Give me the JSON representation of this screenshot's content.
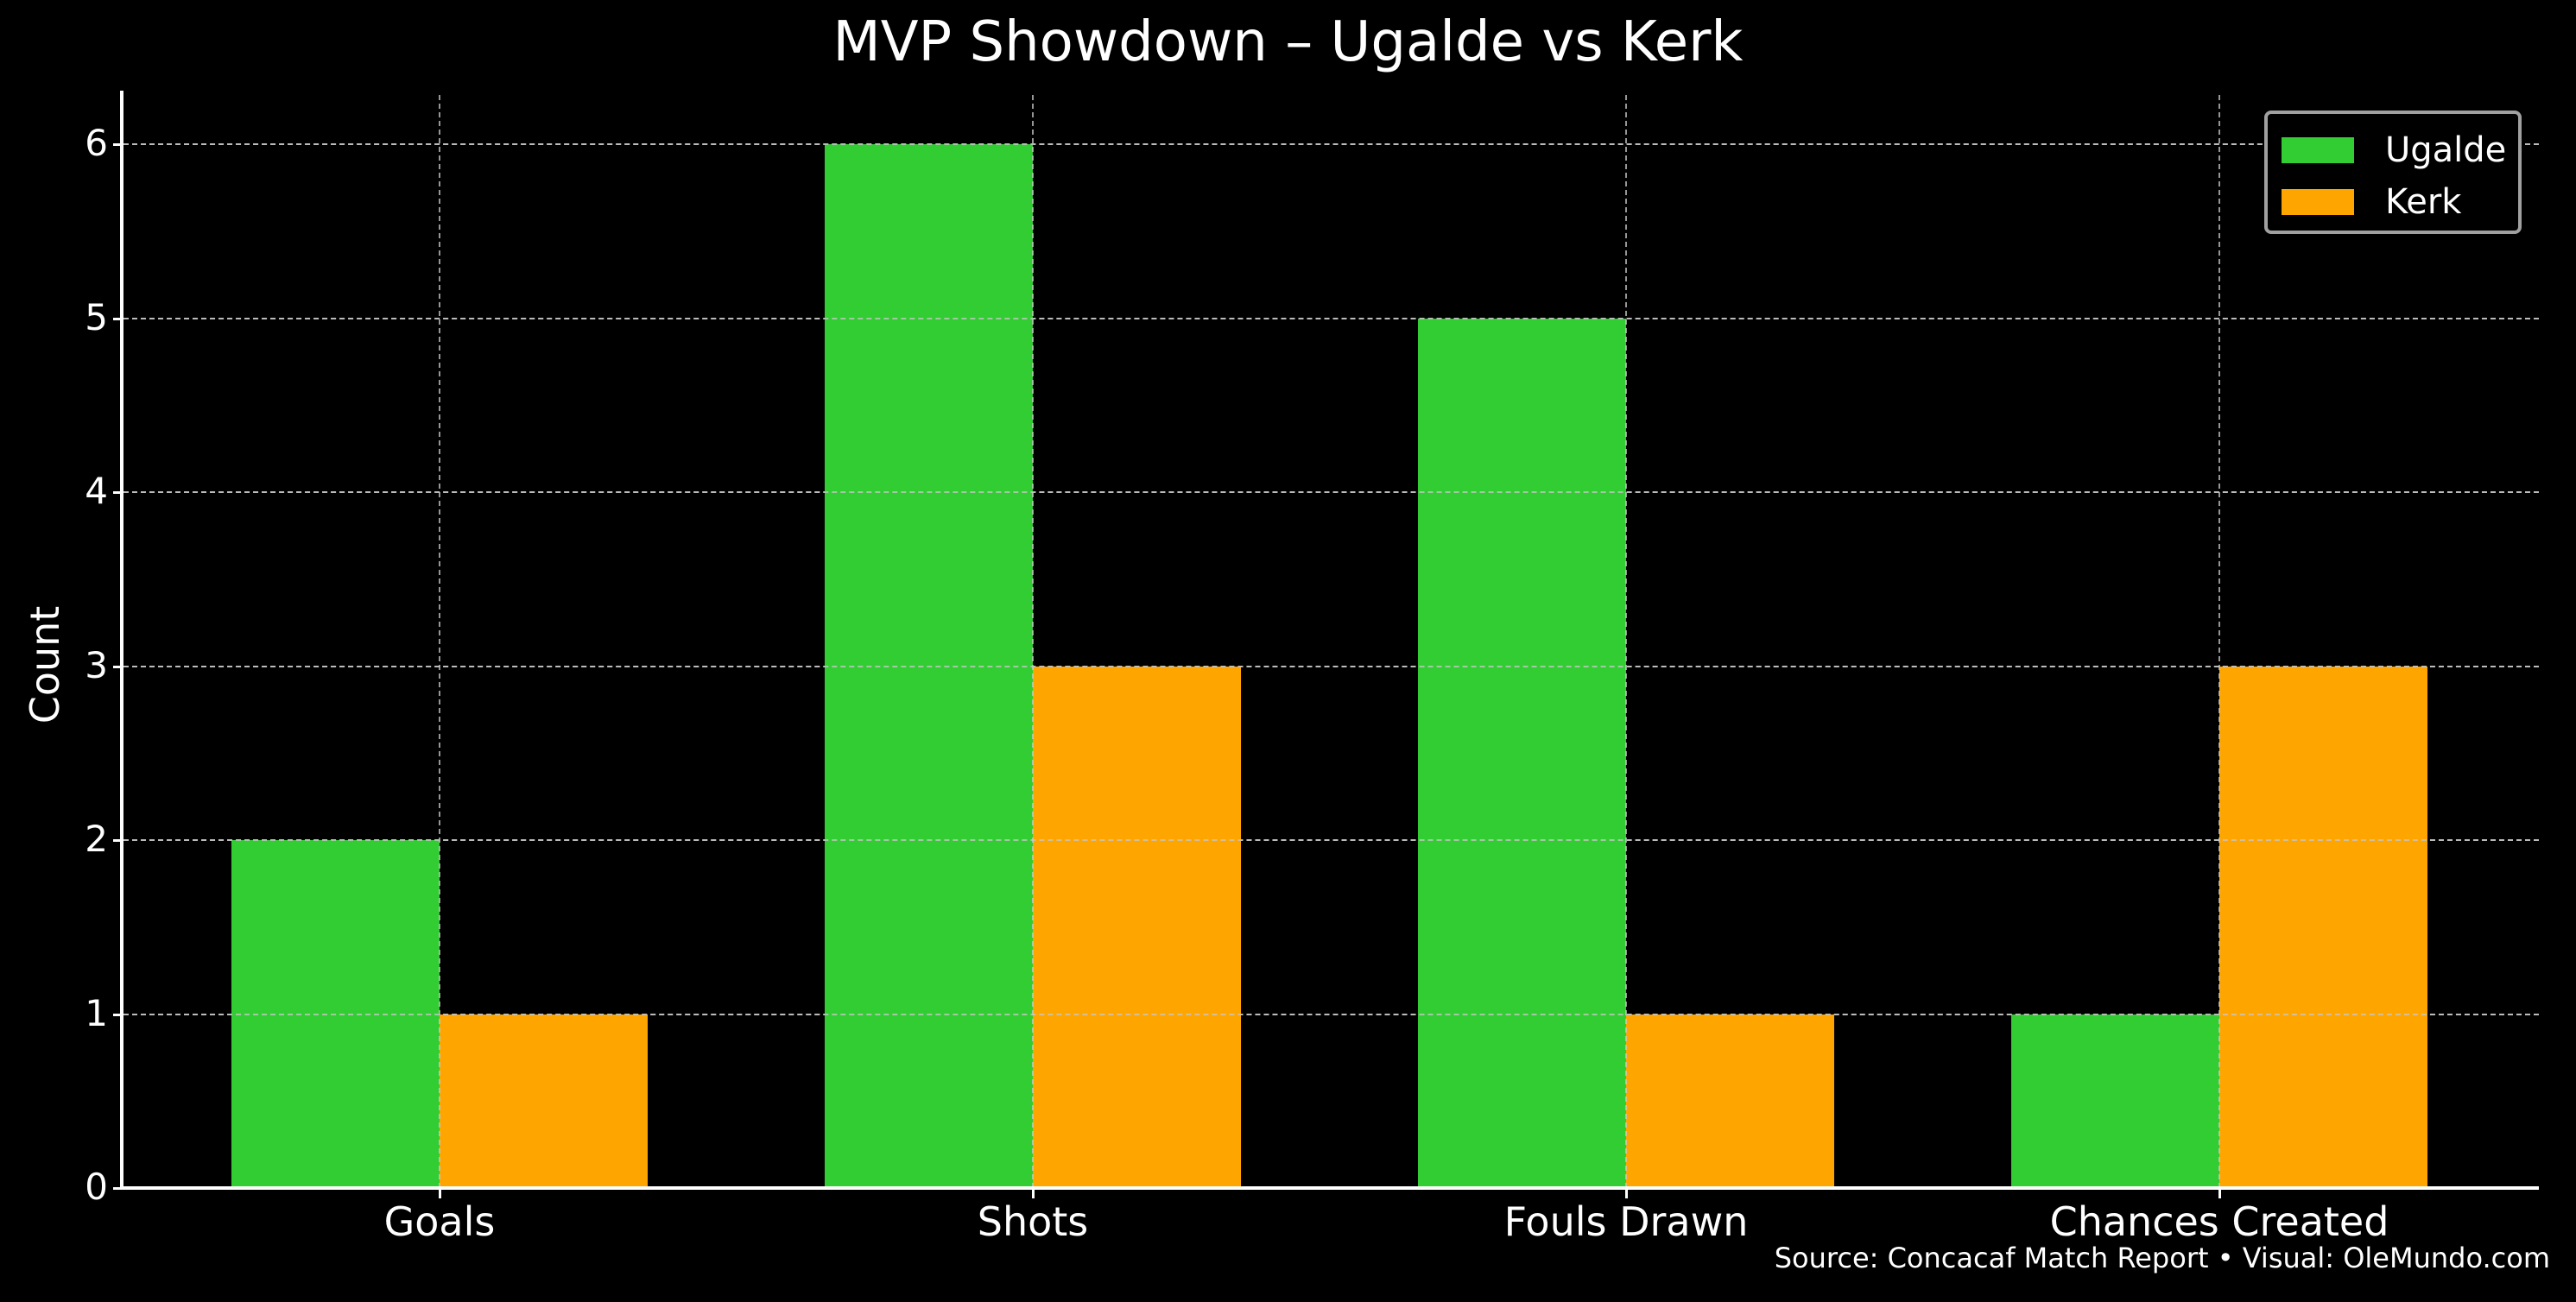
{
  "chart_data": {
    "type": "bar",
    "title": "MVP Showdown – Ugalde vs Kerk",
    "xlabel": "",
    "ylabel": "Count",
    "categories": [
      "Goals",
      "Shots",
      "Fouls Drawn",
      "Chances Created"
    ],
    "series": [
      {
        "name": "Ugalde",
        "color": "#32cd32",
        "values": [
          2,
          6,
          5,
          1
        ]
      },
      {
        "name": "Kerk",
        "color": "#ffa500",
        "values": [
          1,
          3,
          1,
          3
        ]
      }
    ],
    "ylim": [
      0,
      6.3
    ],
    "yticks": [
      0,
      1,
      2,
      3,
      4,
      5,
      6
    ],
    "grid": true,
    "legend_position": "upper right",
    "annotation": "Source: Concacaf Match Report • Visual: OleMundo.com"
  },
  "title": "MVP Showdown – Ugalde vs Kerk",
  "yaxis": {
    "title": "Count",
    "ticks": [
      "0",
      "1",
      "2",
      "3",
      "4",
      "5",
      "6"
    ]
  },
  "xaxis": {
    "labels": [
      "Goals",
      "Shots",
      "Fouls Drawn",
      "Chances Created"
    ]
  },
  "legend": {
    "items": [
      {
        "label": "Ugalde",
        "color": "#32cd32"
      },
      {
        "label": "Kerk",
        "color": "#ffa500"
      }
    ]
  },
  "source": "Source: Concacaf Match Report • Visual: OleMundo.com"
}
